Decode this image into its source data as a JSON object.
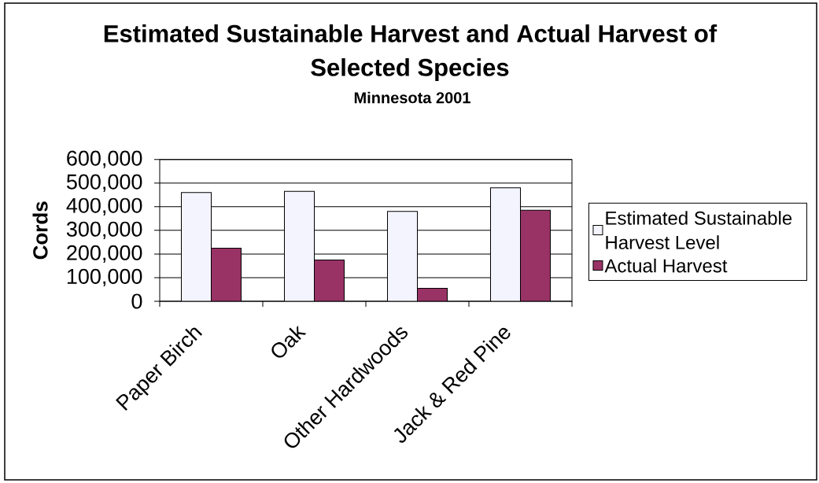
{
  "chart_data": {
    "type": "bar",
    "title": "Estimated Sustainable Harvest and Actual Harvest of Selected Species",
    "subtitle": "Minnesota 2001",
    "ylabel": "Cords",
    "categories": [
      "Paper Birch",
      "Oak",
      "Other Hardwoods",
      "Jack & Red Pine"
    ],
    "series": [
      {
        "name": "Estimated Sustainable Harvest Level",
        "color": "#f4f4ff",
        "values": [
          460000,
          465000,
          380000,
          480000
        ]
      },
      {
        "name": "Actual Harvest",
        "color": "#993366",
        "values": [
          225000,
          175000,
          55000,
          385000
        ]
      }
    ],
    "ylim": [
      0,
      600000
    ],
    "yticks": [
      0,
      {
        "value": 100000,
        "label": "100,000"
      },
      {
        "value": 200000,
        "label": "200,000"
      },
      {
        "value": 300000,
        "label": "300,000"
      },
      {
        "value": 400000,
        "label": "400,000"
      },
      {
        "value": 500000,
        "label": "500,000"
      },
      {
        "value": 600000,
        "label": "600,000"
      }
    ],
    "grid": "y",
    "legend": "right"
  }
}
